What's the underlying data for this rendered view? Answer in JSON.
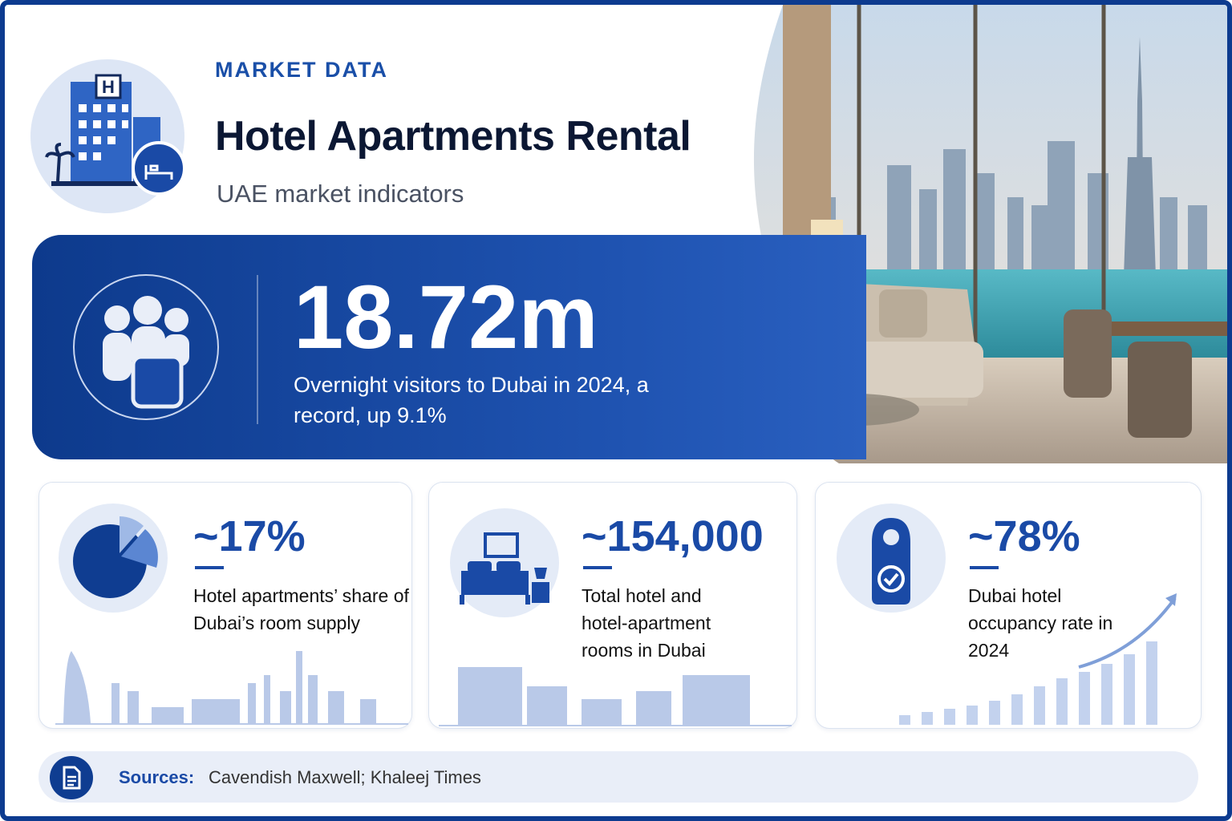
{
  "header": {
    "icon_label": "H",
    "eyebrow": "MARKET DATA",
    "title": "Hotel Apartments Rental",
    "subtitle": "UAE market indicators"
  },
  "hero": {
    "value": "18.72m",
    "description": "Overnight visitors to Dubai in 2024, a record, up 9.1%"
  },
  "cards": [
    {
      "value": "~17%",
      "description": "Hotel apartments’ share of Dubai’s room supply"
    },
    {
      "value": "~154,000",
      "description": "Total hotel and hotel-apartment rooms in Dubai"
    },
    {
      "value": "~78%",
      "description": "Dubai hotel occupancy rate in 2024"
    }
  ],
  "sources": {
    "label": "Sources:",
    "text": "Cavendish Maxwell; Khaleej Times"
  }
}
